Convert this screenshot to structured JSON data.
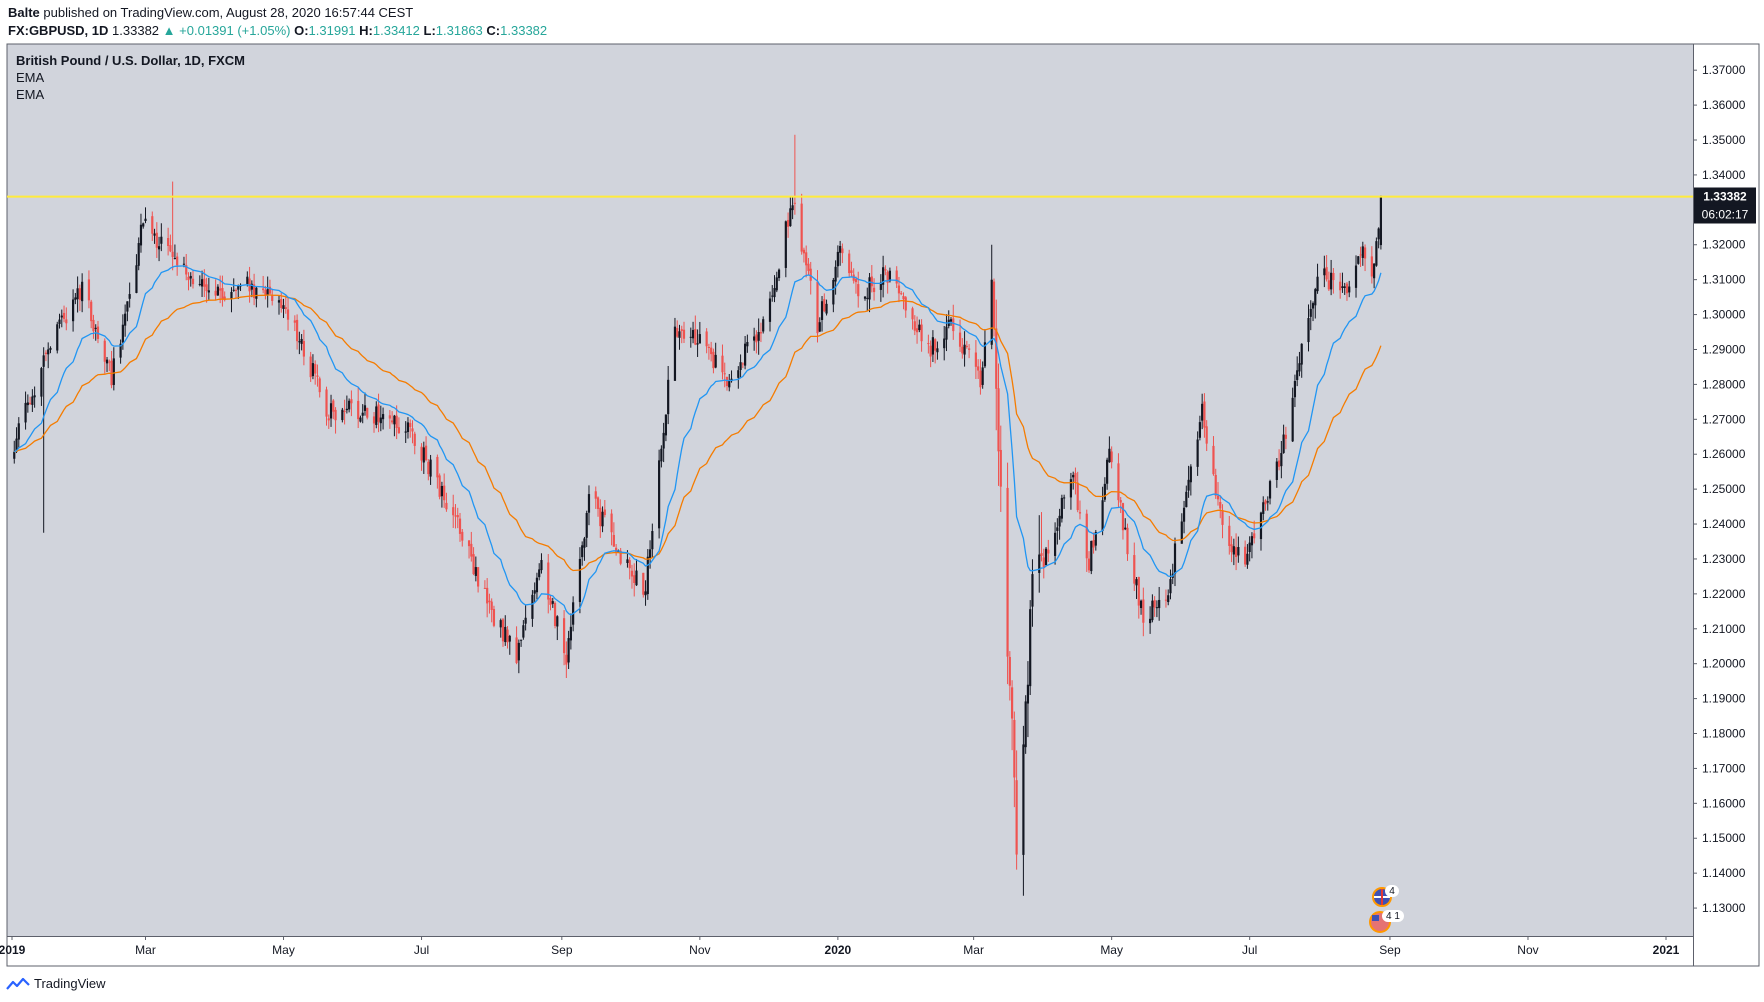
{
  "publish_bar": {
    "author": "Balte",
    "text": "published on TradingView.com, August 28, 2020 16:57:44 CEST"
  },
  "ohlc_bar": {
    "symbol": "FX:GBPUSD, 1D",
    "last": "1.33382",
    "change": "+0.01391 (+1.05%)",
    "o_label": "O:",
    "o_value": "1.31991",
    "h_label": "H:",
    "h_value": "1.33412",
    "l_label": "L:",
    "l_value": "1.31863",
    "c_label": "C:",
    "c_value": "1.33382"
  },
  "legend": {
    "title": "British Pound / U.S. Dollar, 1D, FXCM",
    "indicator_1": "EMA",
    "indicator_2": "EMA"
  },
  "footer": {
    "brand": "TradingView"
  },
  "price_tags": {
    "last_price": "1.33382",
    "countdown": "06:02:17"
  },
  "event_badges": {
    "badge_1": "4",
    "badge_2": "4 1"
  },
  "colors": {
    "background": "#d1d4dc",
    "bull": "#131722",
    "bear": "#ef5350",
    "ema_fast": "#2196f3",
    "ema_slow": "#f57c00",
    "horizontal_line": "#ffeb3b"
  },
  "chart_data": {
    "type": "candlestick",
    "title": "British Pound / U.S. Dollar, 1D, FXCM",
    "ylim": [
      1.122,
      1.3775
    ],
    "y_ticks": [
      "1.37000",
      "1.36000",
      "1.35000",
      "1.34000",
      "1.33000",
      "1.32000",
      "1.31000",
      "1.30000",
      "1.29000",
      "1.28000",
      "1.27000",
      "1.26000",
      "1.25000",
      "1.24000",
      "1.23000",
      "1.22000",
      "1.21000",
      "1.20000",
      "1.19000",
      "1.18000",
      "1.17000",
      "1.16000",
      "1.15000",
      "1.14000",
      "1.13000"
    ],
    "x_ticks": [
      {
        "label": "2019",
        "date": "2019-01-01"
      },
      {
        "label": "Mar",
        "date": "2019-03-01"
      },
      {
        "label": "May",
        "date": "2019-05-01"
      },
      {
        "label": "Jul",
        "date": "2019-07-01"
      },
      {
        "label": "Sep",
        "date": "2019-09-01"
      },
      {
        "label": "Nov",
        "date": "2019-11-01"
      },
      {
        "label": "2020",
        "date": "2020-01-01"
      },
      {
        "label": "Mar",
        "date": "2020-03-01"
      },
      {
        "label": "May",
        "date": "2020-05-01"
      },
      {
        "label": "Jul",
        "date": "2020-07-01"
      },
      {
        "label": "Sep",
        "date": "2020-09-01"
      },
      {
        "label": "Nov",
        "date": "2020-11-01"
      },
      {
        "label": "2021",
        "date": "2021-01-01"
      }
    ],
    "horizontal_line": 1.3338,
    "last_price": 1.33382,
    "close_anchors": [
      [
        "2019-01-02",
        1.263
      ],
      [
        "2019-01-15",
        1.287
      ],
      [
        "2019-02-01",
        1.308
      ],
      [
        "2019-02-14",
        1.282
      ],
      [
        "2019-02-28",
        1.326
      ],
      [
        "2019-03-12",
        1.318
      ],
      [
        "2019-03-29",
        1.305
      ],
      [
        "2019-04-15",
        1.308
      ],
      [
        "2019-05-01",
        1.304
      ],
      [
        "2019-05-21",
        1.272
      ],
      [
        "2019-06-05",
        1.273
      ],
      [
        "2019-06-25",
        1.268
      ],
      [
        "2019-07-16",
        1.242
      ],
      [
        "2019-08-01",
        1.214
      ],
      [
        "2019-08-12",
        1.203
      ],
      [
        "2019-08-23",
        1.228
      ],
      [
        "2019-09-03",
        1.201
      ],
      [
        "2019-09-13",
        1.248
      ],
      [
        "2019-09-30",
        1.228
      ],
      [
        "2019-10-08",
        1.222
      ],
      [
        "2019-10-21",
        1.296
      ],
      [
        "2019-11-01",
        1.294
      ],
      [
        "2019-11-12",
        1.281
      ],
      [
        "2019-11-29",
        1.296
      ],
      [
        "2019-12-06",
        1.315
      ],
      [
        "2019-12-12",
        1.333
      ],
      [
        "2019-12-23",
        1.297
      ],
      [
        "2020-01-02",
        1.318
      ],
      [
        "2020-01-10",
        1.305
      ],
      [
        "2020-01-23",
        1.312
      ],
      [
        "2020-02-10",
        1.29
      ],
      [
        "2020-02-21",
        1.297
      ],
      [
        "2020-03-04",
        1.281
      ],
      [
        "2020-03-09",
        1.312
      ],
      [
        "2020-03-12",
        1.265
      ],
      [
        "2020-03-20",
        1.149
      ],
      [
        "2020-03-27",
        1.22
      ],
      [
        "2020-04-06",
        1.24
      ],
      [
        "2020-04-14",
        1.254
      ],
      [
        "2020-04-21",
        1.229
      ],
      [
        "2020-04-30",
        1.259
      ],
      [
        "2020-05-15",
        1.212
      ],
      [
        "2020-05-26",
        1.221
      ],
      [
        "2020-06-10",
        1.274
      ],
      [
        "2020-06-19",
        1.238
      ],
      [
        "2020-06-29",
        1.23
      ],
      [
        "2020-07-14",
        1.258
      ],
      [
        "2020-07-31",
        1.311
      ],
      [
        "2020-08-14",
        1.308
      ],
      [
        "2020-08-20",
        1.322
      ],
      [
        "2020-08-24",
        1.308
      ],
      [
        "2020-08-28",
        1.3338
      ]
    ]
  }
}
